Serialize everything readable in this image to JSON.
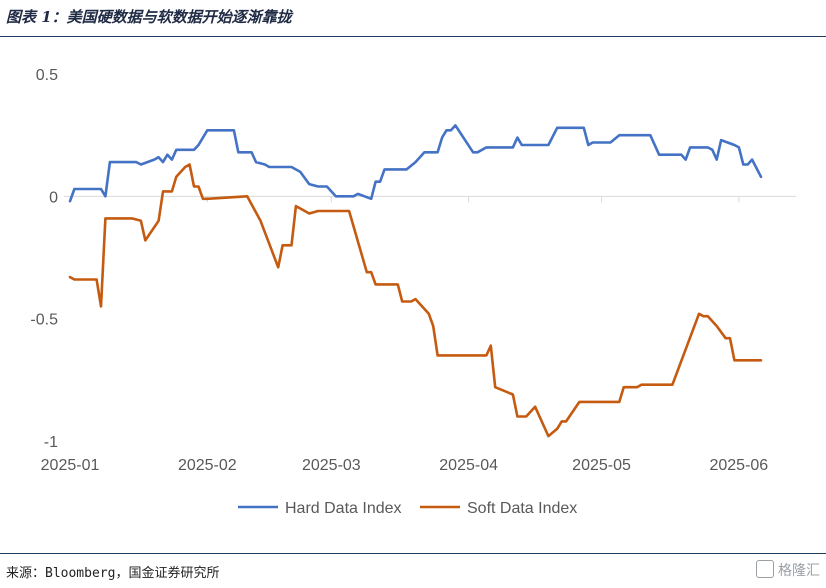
{
  "figure": {
    "title": "图表 1：美国硬数据与软数据开始逐渐靠拢",
    "source": "来源：Bloomberg，国金证券研究所",
    "watermark": "格隆汇"
  },
  "colors": {
    "hard": "#4472C4",
    "soft": "#C55A11",
    "axis": "#d9d9d9",
    "tick_text": "#595959"
  },
  "chart_data": {
    "type": "line",
    "xlabel": "",
    "ylabel": "",
    "x_tick_labels": [
      "2025-01",
      "2025-02",
      "2025-03",
      "2025-04",
      "2025-05",
      "2025-06"
    ],
    "x_tick_dates": [
      "2025-01-01",
      "2025-02-01",
      "2025-03-01",
      "2025-04-01",
      "2025-05-01",
      "2025-06-01"
    ],
    "xlim": [
      "2025-01-01",
      "2025-06-06"
    ],
    "ylim": [
      -1,
      0.5
    ],
    "y_ticks": [
      0.5,
      0,
      -0.5,
      -1
    ],
    "y_tick_labels": [
      "0.5",
      "0",
      "-0.5",
      "-1"
    ],
    "grid": false,
    "legend_position": "bottom",
    "series": [
      {
        "name": "Hard Data Index",
        "color": "#4472C4",
        "points": [
          [
            "2025-01-01",
            -0.02
          ],
          [
            "2025-01-02",
            0.03
          ],
          [
            "2025-01-08",
            0.03
          ],
          [
            "2025-01-09",
            0.0
          ],
          [
            "2025-01-10",
            0.14
          ],
          [
            "2025-01-16",
            0.14
          ],
          [
            "2025-01-17",
            0.13
          ],
          [
            "2025-01-20",
            0.15
          ],
          [
            "2025-01-21",
            0.16
          ],
          [
            "2025-01-22",
            0.14
          ],
          [
            "2025-01-23",
            0.17
          ],
          [
            "2025-01-24",
            0.15
          ],
          [
            "2025-01-25",
            0.19
          ],
          [
            "2025-01-29",
            0.19
          ],
          [
            "2025-01-30",
            0.21
          ],
          [
            "2025-02-01",
            0.27
          ],
          [
            "2025-02-07",
            0.27
          ],
          [
            "2025-02-08",
            0.18
          ],
          [
            "2025-02-11",
            0.18
          ],
          [
            "2025-02-12",
            0.14
          ],
          [
            "2025-02-14",
            0.13
          ],
          [
            "2025-02-15",
            0.12
          ],
          [
            "2025-02-20",
            0.12
          ],
          [
            "2025-02-22",
            0.1
          ],
          [
            "2025-02-24",
            0.05
          ],
          [
            "2025-02-26",
            0.04
          ],
          [
            "2025-02-28",
            0.04
          ],
          [
            "2025-03-02",
            0.0
          ],
          [
            "2025-03-06",
            0.0
          ],
          [
            "2025-03-07",
            0.01
          ],
          [
            "2025-03-10",
            -0.01
          ],
          [
            "2025-03-11",
            0.06
          ],
          [
            "2025-03-12",
            0.06
          ],
          [
            "2025-03-13",
            0.11
          ],
          [
            "2025-03-18",
            0.11
          ],
          [
            "2025-03-20",
            0.14
          ],
          [
            "2025-03-22",
            0.18
          ],
          [
            "2025-03-25",
            0.18
          ],
          [
            "2025-03-26",
            0.24
          ],
          [
            "2025-03-27",
            0.27
          ],
          [
            "2025-03-28",
            0.27
          ],
          [
            "2025-03-29",
            0.29
          ],
          [
            "2025-04-02",
            0.18
          ],
          [
            "2025-04-03",
            0.18
          ],
          [
            "2025-04-05",
            0.2
          ],
          [
            "2025-04-11",
            0.2
          ],
          [
            "2025-04-12",
            0.24
          ],
          [
            "2025-04-13",
            0.21
          ],
          [
            "2025-04-19",
            0.21
          ],
          [
            "2025-04-21",
            0.28
          ],
          [
            "2025-04-27",
            0.28
          ],
          [
            "2025-04-28",
            0.21
          ],
          [
            "2025-04-29",
            0.22
          ],
          [
            "2025-05-03",
            0.22
          ],
          [
            "2025-05-05",
            0.25
          ],
          [
            "2025-05-12",
            0.25
          ],
          [
            "2025-05-14",
            0.17
          ],
          [
            "2025-05-19",
            0.17
          ],
          [
            "2025-05-20",
            0.15
          ],
          [
            "2025-05-21",
            0.2
          ],
          [
            "2025-05-25",
            0.2
          ],
          [
            "2025-05-26",
            0.19
          ],
          [
            "2025-05-27",
            0.15
          ],
          [
            "2025-05-28",
            0.23
          ],
          [
            "2025-05-31",
            0.21
          ],
          [
            "2025-06-01",
            0.2
          ],
          [
            "2025-06-02",
            0.13
          ],
          [
            "2025-06-03",
            0.13
          ],
          [
            "2025-06-04",
            0.15
          ],
          [
            "2025-06-06",
            0.08
          ]
        ]
      },
      {
        "name": "Soft Data Index",
        "color": "#C55A11",
        "points": [
          [
            "2025-01-01",
            -0.33
          ],
          [
            "2025-01-02",
            -0.34
          ],
          [
            "2025-01-07",
            -0.34
          ],
          [
            "2025-01-08",
            -0.45
          ],
          [
            "2025-01-09",
            -0.09
          ],
          [
            "2025-01-15",
            -0.09
          ],
          [
            "2025-01-17",
            -0.1
          ],
          [
            "2025-01-18",
            -0.18
          ],
          [
            "2025-01-21",
            -0.1
          ],
          [
            "2025-01-22",
            0.02
          ],
          [
            "2025-01-24",
            0.02
          ],
          [
            "2025-01-25",
            0.08
          ],
          [
            "2025-01-27",
            0.12
          ],
          [
            "2025-01-28",
            0.13
          ],
          [
            "2025-01-29",
            0.04
          ],
          [
            "2025-01-30",
            0.04
          ],
          [
            "2025-01-31",
            -0.01
          ],
          [
            "2025-02-01",
            -0.01
          ],
          [
            "2025-02-10",
            0.0
          ],
          [
            "2025-02-13",
            -0.1
          ],
          [
            "2025-02-17",
            -0.29
          ],
          [
            "2025-02-18",
            -0.2
          ],
          [
            "2025-02-20",
            -0.2
          ],
          [
            "2025-02-21",
            -0.04
          ],
          [
            "2025-02-23",
            -0.06
          ],
          [
            "2025-02-24",
            -0.07
          ],
          [
            "2025-02-26",
            -0.06
          ],
          [
            "2025-03-05",
            -0.06
          ],
          [
            "2025-03-09",
            -0.31
          ],
          [
            "2025-03-10",
            -0.31
          ],
          [
            "2025-03-11",
            -0.36
          ],
          [
            "2025-03-16",
            -0.36
          ],
          [
            "2025-03-17",
            -0.43
          ],
          [
            "2025-03-19",
            -0.43
          ],
          [
            "2025-03-20",
            -0.42
          ],
          [
            "2025-03-23",
            -0.48
          ],
          [
            "2025-03-24",
            -0.53
          ],
          [
            "2025-03-25",
            -0.65
          ],
          [
            "2025-04-05",
            -0.65
          ],
          [
            "2025-04-06",
            -0.61
          ],
          [
            "2025-04-07",
            -0.78
          ],
          [
            "2025-04-11",
            -0.81
          ],
          [
            "2025-04-12",
            -0.9
          ],
          [
            "2025-04-14",
            -0.9
          ],
          [
            "2025-04-16",
            -0.86
          ],
          [
            "2025-04-19",
            -0.98
          ],
          [
            "2025-04-21",
            -0.95
          ],
          [
            "2025-04-22",
            -0.92
          ],
          [
            "2025-04-23",
            -0.92
          ],
          [
            "2025-04-26",
            -0.84
          ],
          [
            "2025-05-05",
            -0.84
          ],
          [
            "2025-05-06",
            -0.78
          ],
          [
            "2025-05-09",
            -0.78
          ],
          [
            "2025-05-10",
            -0.77
          ],
          [
            "2025-05-17",
            -0.77
          ],
          [
            "2025-05-23",
            -0.48
          ],
          [
            "2025-05-24",
            -0.49
          ],
          [
            "2025-05-25",
            -0.49
          ],
          [
            "2025-05-27",
            -0.53
          ],
          [
            "2025-05-29",
            -0.58
          ],
          [
            "2025-05-30",
            -0.58
          ],
          [
            "2025-05-31",
            -0.67
          ],
          [
            "2025-06-06",
            -0.67
          ]
        ]
      }
    ]
  }
}
